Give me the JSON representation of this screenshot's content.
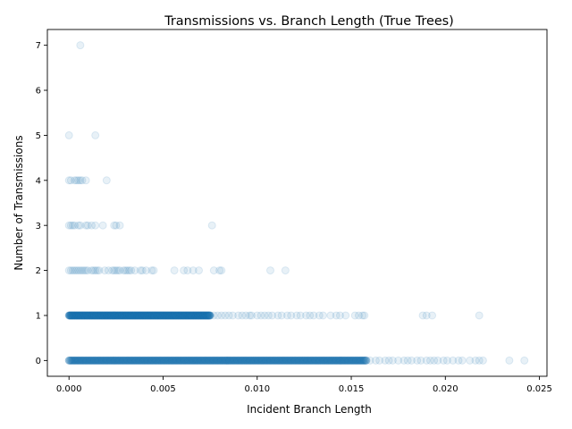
{
  "chart_data": {
    "type": "scatter",
    "title": "Transmissions vs. Branch Length (True Trees)",
    "xlabel": "Incident Branch Length",
    "ylabel": "Number of Transmissions",
    "xlim": [
      -0.00115,
      0.0254
    ],
    "ylim": [
      -0.35,
      7.35
    ],
    "xticks": [
      0.0,
      0.005,
      0.01,
      0.015,
      0.02,
      0.025
    ],
    "xtick_labels": [
      "0.000",
      "0.005",
      "0.010",
      "0.015",
      "0.020",
      "0.025"
    ],
    "yticks": [
      0,
      1,
      2,
      3,
      4,
      5,
      6,
      7
    ],
    "ytick_labels": [
      "0",
      "1",
      "2",
      "3",
      "4",
      "5",
      "6",
      "7"
    ],
    "grid": false,
    "legend": "none",
    "marker_color": "#1f77b4",
    "marker_alpha": 0.1,
    "series": [
      {
        "y": 7,
        "x": [
          0.0006
        ]
      },
      {
        "y": 5,
        "x": [
          0.0,
          0.0014
        ]
      },
      {
        "y": 4,
        "x": [
          0.0,
          0.0001,
          0.0003,
          0.0004,
          0.0005,
          0.0006,
          0.0007,
          0.0009,
          0.002
        ]
      },
      {
        "y": 3,
        "x": [
          0.0,
          0.0001,
          0.0002,
          0.0003,
          0.0005,
          0.0006,
          0.0009,
          0.001,
          0.0012,
          0.0014,
          0.0018,
          0.0024,
          0.0025,
          0.0027,
          0.0076
        ]
      },
      {
        "y": 2,
        "x": [
          0.0,
          0.0001,
          0.0002,
          0.0003,
          0.0004,
          0.0005,
          0.0006,
          0.0007,
          0.0008,
          0.0009,
          0.001,
          0.0012,
          0.0013,
          0.0014,
          0.0015,
          0.0016,
          0.0019,
          0.0021,
          0.0023,
          0.0024,
          0.0025,
          0.0026,
          0.0027,
          0.0029,
          0.003,
          0.0031,
          0.0032,
          0.0033,
          0.0035,
          0.0038,
          0.0039,
          0.0041,
          0.0044,
          0.0045,
          0.0056,
          0.0061,
          0.0063,
          0.0066,
          0.0069,
          0.0077,
          0.008,
          0.0081,
          0.0107,
          0.0115
        ]
      },
      {
        "y": 1,
        "x_dense_range": [
          0.0,
          0.0075
        ],
        "x": [
          0.0077,
          0.0079,
          0.0081,
          0.0083,
          0.0085,
          0.0087,
          0.009,
          0.0092,
          0.0094,
          0.0096,
          0.0097,
          0.01,
          0.0102,
          0.0104,
          0.0106,
          0.0108,
          0.0111,
          0.0113,
          0.0116,
          0.0118,
          0.0121,
          0.0123,
          0.0126,
          0.0128,
          0.013,
          0.0133,
          0.0135,
          0.0139,
          0.0142,
          0.0144,
          0.0147,
          0.0152,
          0.0154,
          0.0156,
          0.0157,
          0.0188,
          0.019,
          0.0193,
          0.0218
        ]
      },
      {
        "y": 0,
        "x_dense_range": [
          0.0,
          0.0158
        ],
        "x": [
          0.016,
          0.0163,
          0.0165,
          0.0168,
          0.017,
          0.0172,
          0.0175,
          0.0178,
          0.018,
          0.0182,
          0.0185,
          0.0187,
          0.019,
          0.0192,
          0.0194,
          0.0196,
          0.0199,
          0.0201,
          0.0204,
          0.0207,
          0.0209,
          0.0213,
          0.0216,
          0.0218,
          0.022,
          0.0234,
          0.0242
        ]
      }
    ]
  }
}
